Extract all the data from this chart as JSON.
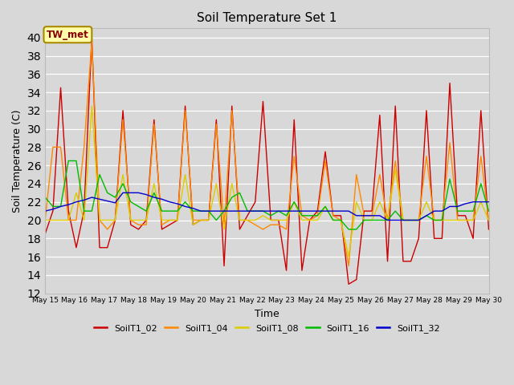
{
  "title": "Soil Temperature Set 1",
  "xlabel": "Time",
  "ylabel": "Soil Temperature (C)",
  "ylim": [
    12,
    41
  ],
  "yticks": [
    12,
    14,
    16,
    18,
    20,
    22,
    24,
    26,
    28,
    30,
    32,
    34,
    36,
    38,
    40
  ],
  "background_color": "#d8d8d8",
  "annotation_text": "TW_met",
  "annotation_bg": "#ffffaa",
  "annotation_border": "#aa8800",
  "annotation_text_color": "#880000",
  "series_colors": {
    "SoilT1_02": "#cc0000",
    "SoilT1_04": "#ff8800",
    "SoilT1_08": "#ddcc00",
    "SoilT1_16": "#00bb00",
    "SoilT1_32": "#0000cc"
  },
  "SoilT1_02": [
    18.5,
    21,
    34.5,
    21,
    17,
    21,
    40,
    17,
    17,
    20,
    32,
    19.5,
    19,
    20,
    31,
    19,
    19.5,
    20,
    32.5,
    19.5,
    20,
    20,
    31,
    15,
    32.5,
    19,
    20.5,
    22,
    33,
    20,
    20,
    14.5,
    31,
    14.5,
    20,
    21,
    27.5,
    20.5,
    20.5,
    13,
    13.5,
    21,
    21,
    31.5,
    15.5,
    32.5,
    15.5,
    15.5,
    18,
    32,
    18,
    18,
    35,
    20.5,
    20.5,
    18,
    32,
    19
  ],
  "SoilT1_04": [
    20,
    28,
    28,
    20,
    20,
    28,
    39.5,
    20,
    19,
    20,
    31,
    20,
    19.5,
    19.5,
    30.5,
    19.5,
    20,
    20,
    32,
    20,
    20,
    20,
    30.5,
    19.5,
    32,
    20,
    20,
    19.5,
    19,
    19.5,
    19.5,
    19,
    27,
    20.5,
    20,
    20.5,
    26.5,
    20.5,
    20,
    15,
    25,
    20.5,
    20.5,
    25,
    20,
    26.5,
    20,
    20,
    20,
    27,
    20,
    20,
    28.5,
    20,
    20,
    20,
    27,
    20
  ],
  "SoilT1_08": [
    20,
    20,
    20,
    20,
    23,
    20,
    32.5,
    20,
    20,
    20,
    25,
    20,
    20,
    20,
    24,
    20,
    20,
    20,
    25,
    19.5,
    20,
    20,
    24,
    19,
    24,
    20,
    20,
    20,
    20.5,
    20,
    20,
    20,
    22,
    20,
    20,
    20,
    21.5,
    20,
    20,
    16,
    22,
    20,
    20,
    22,
    20,
    25.5,
    20,
    20,
    20,
    22,
    20,
    20,
    20,
    20,
    20,
    20,
    22,
    20
  ],
  "SoilT1_16": [
    22.5,
    21.5,
    21.5,
    26.5,
    26.5,
    21,
    21,
    25,
    23,
    22.5,
    24,
    22,
    21.5,
    21,
    23,
    21,
    21,
    21,
    22,
    21,
    21,
    21,
    20,
    21,
    22.5,
    23,
    21,
    21,
    21,
    20.5,
    21,
    20.5,
    22,
    20.5,
    20.5,
    20.5,
    21.5,
    20,
    20,
    19,
    19,
    20,
    20,
    20,
    20,
    21,
    20,
    20,
    20,
    20.5,
    20,
    20,
    24.5,
    21,
    21,
    21,
    24,
    21
  ],
  "SoilT1_32": [
    21,
    21.2,
    21.5,
    21.7,
    22,
    22.2,
    22.5,
    22.3,
    22.1,
    21.9,
    23,
    23,
    23,
    22.8,
    22.5,
    22.3,
    22,
    21.8,
    21.5,
    21.3,
    21,
    21,
    21,
    21,
    21,
    21,
    21,
    21,
    21,
    21,
    21,
    21,
    21,
    21,
    21,
    21,
    21,
    21,
    21,
    21,
    20.5,
    20.5,
    20.5,
    20.5,
    20,
    20,
    20,
    20,
    20,
    20.5,
    21,
    21,
    21.5,
    21.5,
    21.8,
    22,
    22,
    22
  ]
}
